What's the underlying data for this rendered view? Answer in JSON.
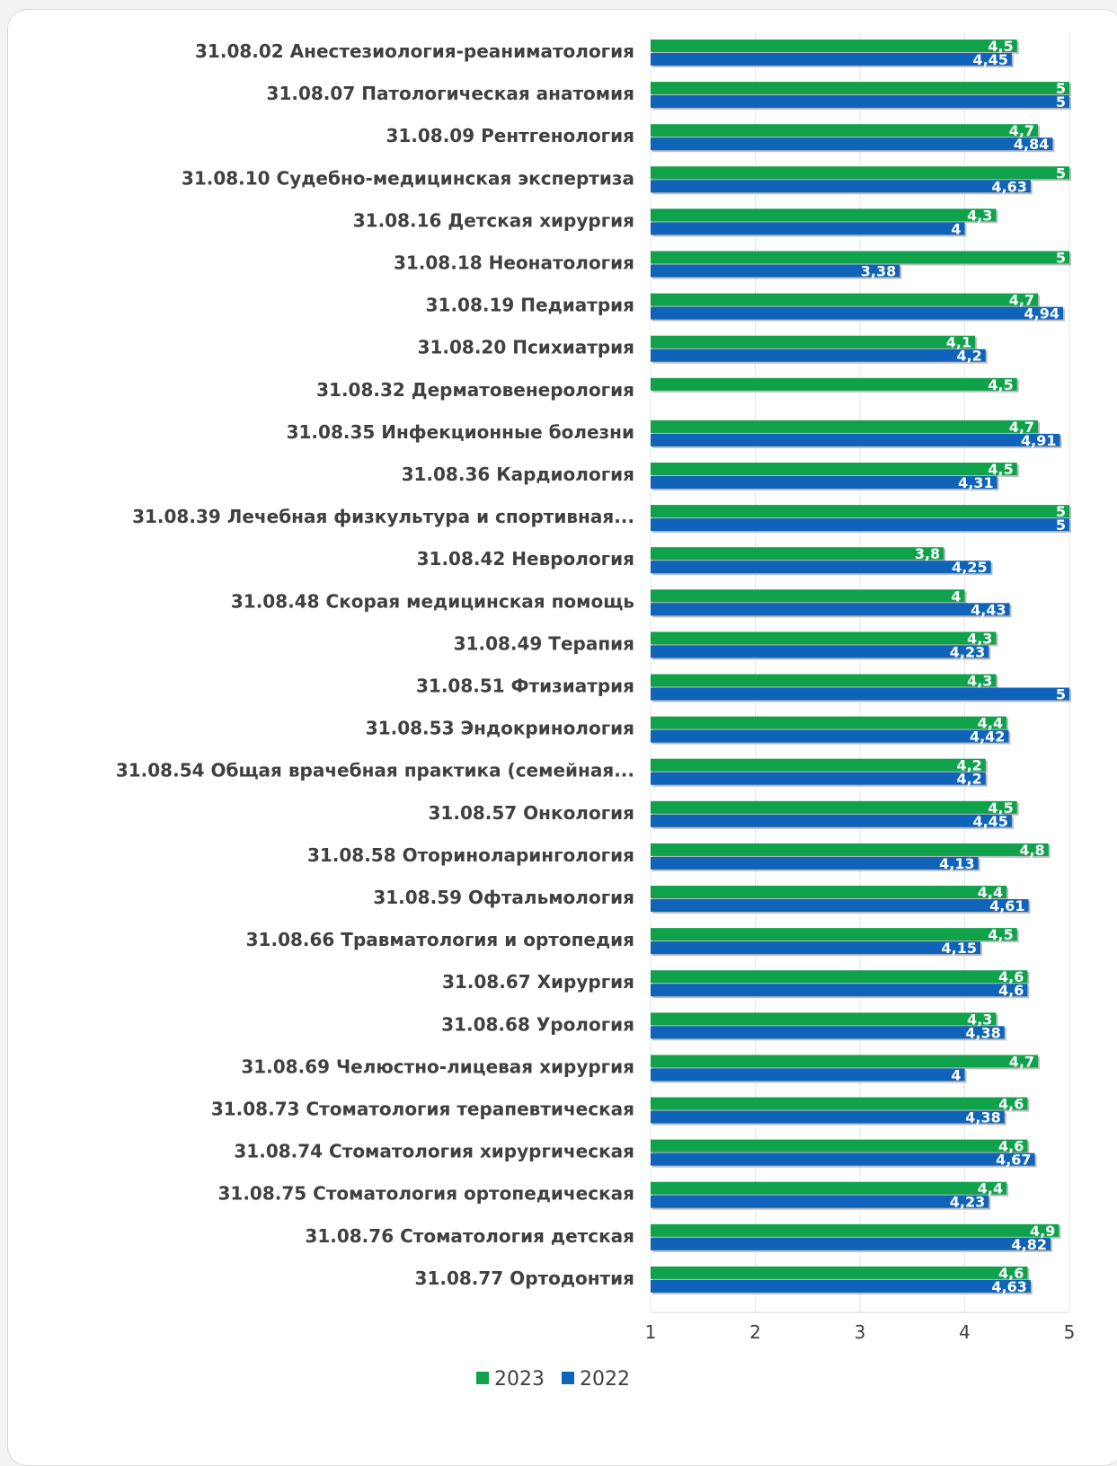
{
  "chart_data": {
    "type": "bar",
    "orientation": "horizontal",
    "categories": [
      "31.08.02 Анестезиология-реаниматология",
      "31.08.07 Патологическая анатомия",
      "31.08.09 Рентгенология",
      "31.08.10 Судебно-медицинская экспертиза",
      "31.08.16 Детская хирургия",
      "31.08.18 Неонатология",
      "31.08.19 Педиатрия",
      "31.08.20 Психиатрия",
      "31.08.32 Дерматовенерология",
      "31.08.35 Инфекционные болезни",
      "31.08.36 Кардиология",
      "31.08.39 Лечебная физкультура и спортивная...",
      "31.08.42 Неврология",
      "31.08.48 Скорая медицинская помощь",
      "31.08.49 Терапия",
      "31.08.51 Фтизиатрия",
      "31.08.53 Эндокринология",
      "31.08.54 Общая врачебная практика (семейная...",
      "31.08.57 Онкология",
      "31.08.58 Оториноларингология",
      "31.08.59 Офтальмология",
      "31.08.66 Травматология и ортопедия",
      "31.08.67 Хирургия",
      "31.08.68 Урология",
      "31.08.69 Челюстно-лицевая хирургия",
      "31.08.73 Стоматология терапевтическая",
      "31.08.74 Стоматология хирургическая",
      "31.08.75 Стоматология ортопедическая",
      "31.08.76 Стоматология детская",
      "31.08.77 Ортодонтия"
    ],
    "series": [
      {
        "name": "2023",
        "color": "#10a24a",
        "values": [
          4.5,
          5,
          4.7,
          5,
          4.3,
          5,
          4.7,
          4.1,
          4.5,
          4.7,
          4.5,
          5,
          3.8,
          4,
          4.3,
          4.3,
          4.4,
          4.2,
          4.5,
          4.8,
          4.4,
          4.5,
          4.6,
          4.3,
          4.7,
          4.6,
          4.6,
          4.4,
          4.9,
          4.6
        ],
        "labels": [
          "4,5",
          "5",
          "4,7",
          "5",
          "4,3",
          "5",
          "4,7",
          "4,1",
          "4,5",
          "4,7",
          "4,5",
          "5",
          "3,8",
          "4",
          "4,3",
          "4,3",
          "4,4",
          "4,2",
          "4,5",
          "4,8",
          "4,4",
          "4,5",
          "4,6",
          "4,3",
          "4,7",
          "4,6",
          "4,6",
          "4,4",
          "4,9",
          "4,6"
        ]
      },
      {
        "name": "2022",
        "color": "#0f64b9",
        "values": [
          4.45,
          5,
          4.84,
          4.63,
          4,
          3.38,
          4.94,
          4.2,
          null,
          4.91,
          4.31,
          5,
          4.25,
          4.43,
          4.23,
          5,
          4.42,
          4.2,
          4.45,
          4.13,
          4.61,
          4.15,
          4.6,
          4.38,
          4,
          4.38,
          4.67,
          4.23,
          4.82,
          4.63
        ],
        "labels": [
          "4,45",
          "5",
          "4,84",
          "4,63",
          "4",
          "3,38",
          "4,94",
          "4,2",
          "",
          "4,91",
          "4,31",
          "5",
          "4,25",
          "4,43",
          "4,23",
          "5",
          "4,42",
          "4,2",
          "4,45",
          "4,13",
          "4,61",
          "4,15",
          "4,6",
          "4,38",
          "4",
          "4,38",
          "4,67",
          "4,23",
          "4,82",
          "4,63"
        ]
      }
    ],
    "xlim": [
      1,
      5
    ],
    "xticks": [
      "1",
      "2",
      "3",
      "4",
      "5"
    ],
    "legend": "bottom",
    "grid": true
  }
}
